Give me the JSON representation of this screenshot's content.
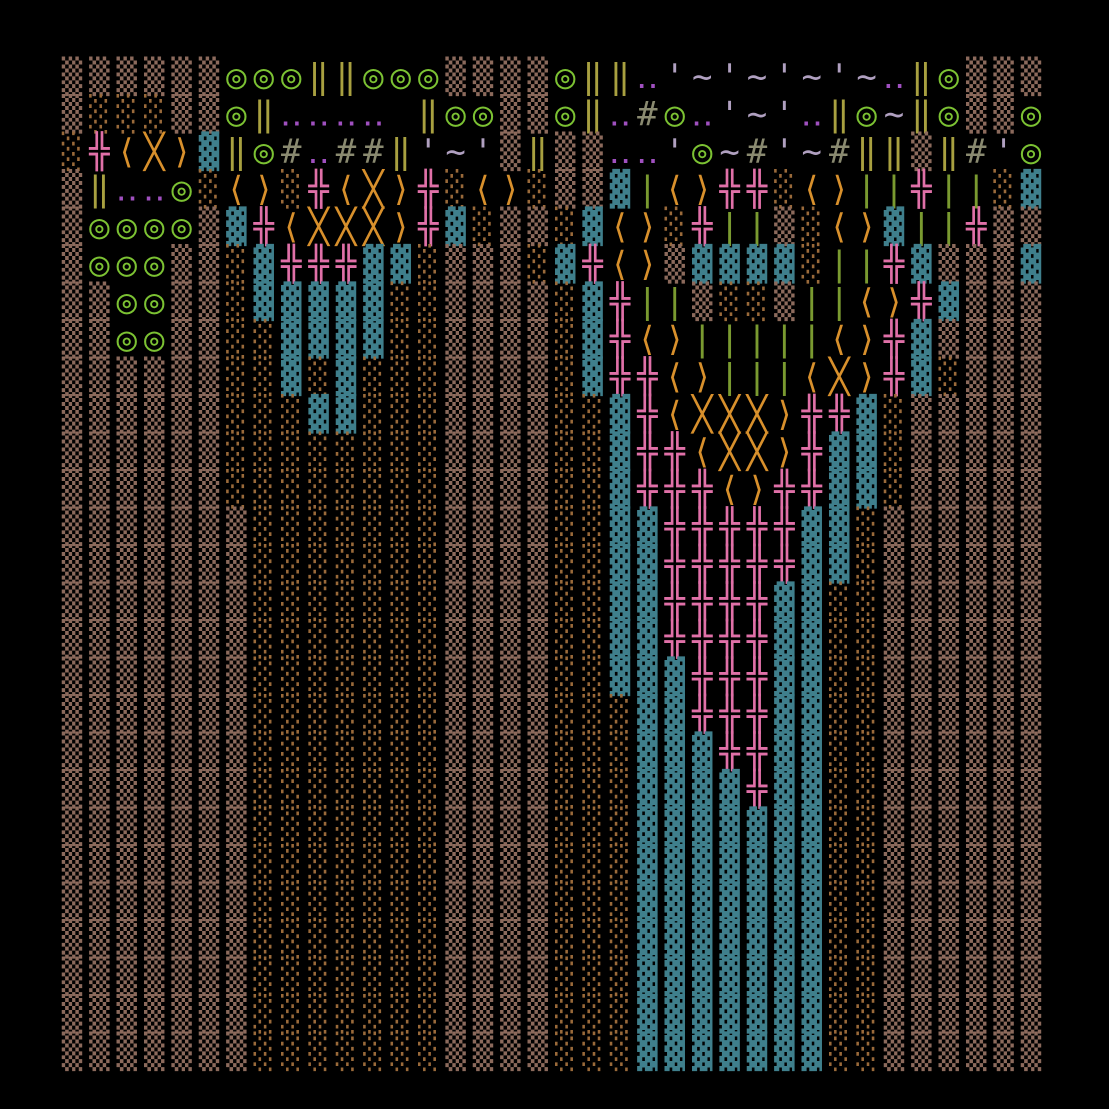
{
  "map": {
    "rows": [
      "▒▒▒▒▒▒◎◎◎‖‖◎◎◎▒▒▒▒◎‖‖‥'~'~'~'~‥‖◎▒▒▒",
      "▒░░░▒▒◎‖‥‥‥‥ ‖◎◎▒▒◎‖‥#◎‥'~'‥‖◎~‖◎▒▒◎",
      "░╬⟨╳⟩▓‖◎#‥##‖'~'▒‖▒▒‥‥'◎~#'~#‖‖▒‖#'◎",
      "▒‖‥‥◎░⟨⟩░╬⟨╳⟩╬░⟨⟩░▒▒▓|⟨⟩╬╬░⟨⟩||╬||░▓",
      "▒◎◎◎◎▒▓╬⟨╳╳╳⟩╬▓░▒▒░▓⟨⟩░╬||▒░⟨⟩▓||╬▒▒",
      "▒◎◎◎▒▒░▓╬╬╬▓▓░▒▒▒░▓╬⟨⟩▒▓▓▓▓░||╬▓▒▒▒▓",
      "▒▒◎◎▒▒░▓▓▓▓▓░░▒▒▒▒░▓╬||▒░░▒||⟨⟩╬▓▒▒▒",
      "▒▒◎◎▒▒░░▓▓▓▓░░▒▒▒▒░▓╬⟨⟩|||||⟨⟩╬▓▒▒▒▒",
      "▒▒▒▒▒▒░░▓░▓░░░▒▒▒▒░▓╬╬⟨⟩|||⟨╳⟩╬▓░▒▒▒",
      "▒▒▒▒▒▒░░░▓▓░░░▒▒▒▒░░▓╬⟨╳╳╳⟩╬╬▓░▒▒▒▒▒",
      "▒▒▒▒▒▒░░░░░░░░▒▒▒▒░░▓╬╬⟨╳╳⟩╬▓▓░▒▒▒▒▒",
      "▒▒▒▒▒▒░░░░░░░░▒▒▒▒░░▓╬╬╬⟨⟩╬╬▓▓░▒▒▒▒▒",
      "▒▒▒▒▒▒▒░░░░░░░▒▒▒▒░░▓▓╬╬╬╬╬▓▓░▒▒▒▒▒▒",
      "▒▒▒▒▒▒▒░░░░░░░▒▒▒▒░░▓▓╬╬╬╬╬▓▓░▒▒▒▒▒▒",
      "▒▒▒▒▒▒▒░░░░░░░▒▒▒▒░░▓▓╬╬╬╬▓▓░░▒▒▒▒▒▒",
      "▒▒▒▒▒▒▒░░░░░░░▒▒▒▒░░▓▓╬╬╬╬▓▓░░▒▒▒▒▒▒",
      "▒▒▒▒▒▒▒░░░░░░░▒▒▒▒░░▓▓▓╬╬╬▓▓░░▒▒▒▒▒▒",
      "▒▒▒▒▒▒▒░░░░░░░▒▒▒▒░░░▓▓╬╬╬▓▓░░▒▒▒▒▒▒",
      "▒▒▒▒▒▒▒░░░░░░░▒▒▒▒░░░▓▓▓╬╬▓▓░░▒▒▒▒▒▒",
      "▒▒▒▒▒▒▒░░░░░░░▒▒▒▒░░░▓▓▓▓╬▓▓░░▒▒▒▒▒▒",
      "▒▒▒▒▒▒▒░░░░░░░▒▒▒▒░░░▓▓▓▓▓▓▓░░▒▒▒▒▒▒",
      "▒▒▒▒▒▒▒░░░░░░░▒▒▒▒░░░▓▓▓▓▓▓▓░░▒▒▒▒▒▒",
      "▒▒▒▒▒▒▒░░░░░░░▒▒▒▒░░░▓▓▓▓▓▓▓░░▒▒▒▒▒▒",
      "▒▒▒▒▒▒▒░░░░░░░▒▒▒▒░░░▓▓▓▓▓▓▓░░▒▒▒▒▒▒",
      "▒▒▒▒▒▒▒░░░░░░░▒▒▒▒░░░▓▓▓▓▓▓▓░░▒▒▒▒▒▒",
      "▒▒▒▒▒▒▒░░░░░░░▒▒▒▒░░░▓▓▓▓▓▓▓░░▒▒▒▒▒▒",
      "▒▒▒▒▒▒▒░░░░░░░▒▒▒▒░░░▓▓▓▓▓▓▓░░▒▒▒▒▒▒"
    ],
    "glyphs": [
      {
        "char": "▒",
        "color": "#8c6a5c"
      },
      {
        "char": "░",
        "color": "#9a6a3a"
      },
      {
        "char": "▓",
        "color": "#3f7f8c"
      },
      {
        "char": "◎",
        "color": "#7cc233"
      },
      {
        "char": "‖",
        "color": "#a8a040"
      },
      {
        "char": "╬",
        "color": "#e070a8"
      },
      {
        "char": "⟨",
        "color": "#d8902c"
      },
      {
        "char": "⟩",
        "color": "#d8902c"
      },
      {
        "char": "╳",
        "color": "#d8902c"
      },
      {
        "char": "#",
        "color": "#8a8a70"
      },
      {
        "char": "‥",
        "color": "#a050c0"
      },
      {
        "char": "'",
        "color": "#b0a0c0"
      },
      {
        "char": "~",
        "color": "#b0a0c0"
      },
      {
        "char": "|",
        "color": "#7a9a30"
      }
    ]
  }
}
